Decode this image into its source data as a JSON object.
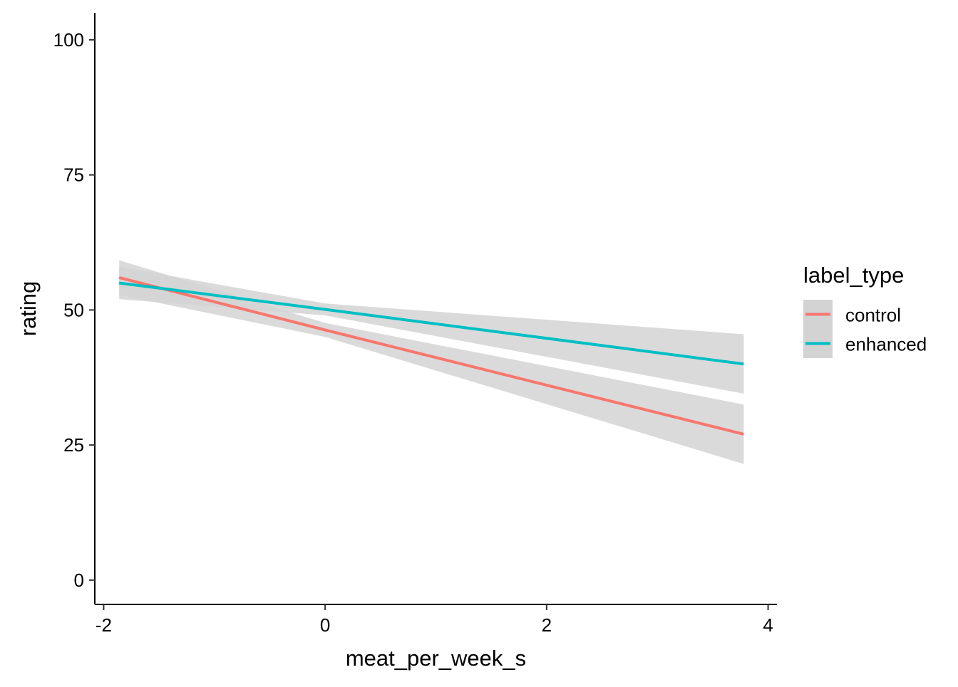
{
  "chart_data": {
    "type": "line",
    "title": "",
    "xlabel": "meat_per_week_s",
    "ylabel": "rating",
    "xlim": [
      -2.08,
      4.08
    ],
    "ylim": [
      -4.5,
      105
    ],
    "x_ticks": [
      -2,
      0,
      2,
      4
    ],
    "y_ticks": [
      0,
      25,
      50,
      75,
      100
    ],
    "x_tick_labels": [
      "-2",
      "0",
      "2",
      "4"
    ],
    "y_tick_labels": [
      "0",
      "25",
      "50",
      "75",
      "100"
    ],
    "grid": false,
    "legend": {
      "title": "label_type",
      "placement": "right",
      "entries": [
        "control",
        "enhanced"
      ]
    },
    "series": [
      {
        "name": "control",
        "color": "#F8766D",
        "x": [
          -1.86,
          0,
          3.78
        ],
        "y": [
          56.0,
          46.3,
          27.0
        ],
        "ci_lower": [
          52.8,
          45.0,
          21.5
        ],
        "ci_upper": [
          59.2,
          47.6,
          32.5
        ]
      },
      {
        "name": "enhanced",
        "color": "#00BFC4",
        "x": [
          -1.86,
          0,
          3.78
        ],
        "y": [
          55.0,
          50.1,
          40.0
        ],
        "ci_lower": [
          52.0,
          49.0,
          34.5
        ],
        "ci_upper": [
          58.0,
          51.2,
          45.5
        ]
      }
    ],
    "ribbon_color": "#D3D3D3"
  }
}
